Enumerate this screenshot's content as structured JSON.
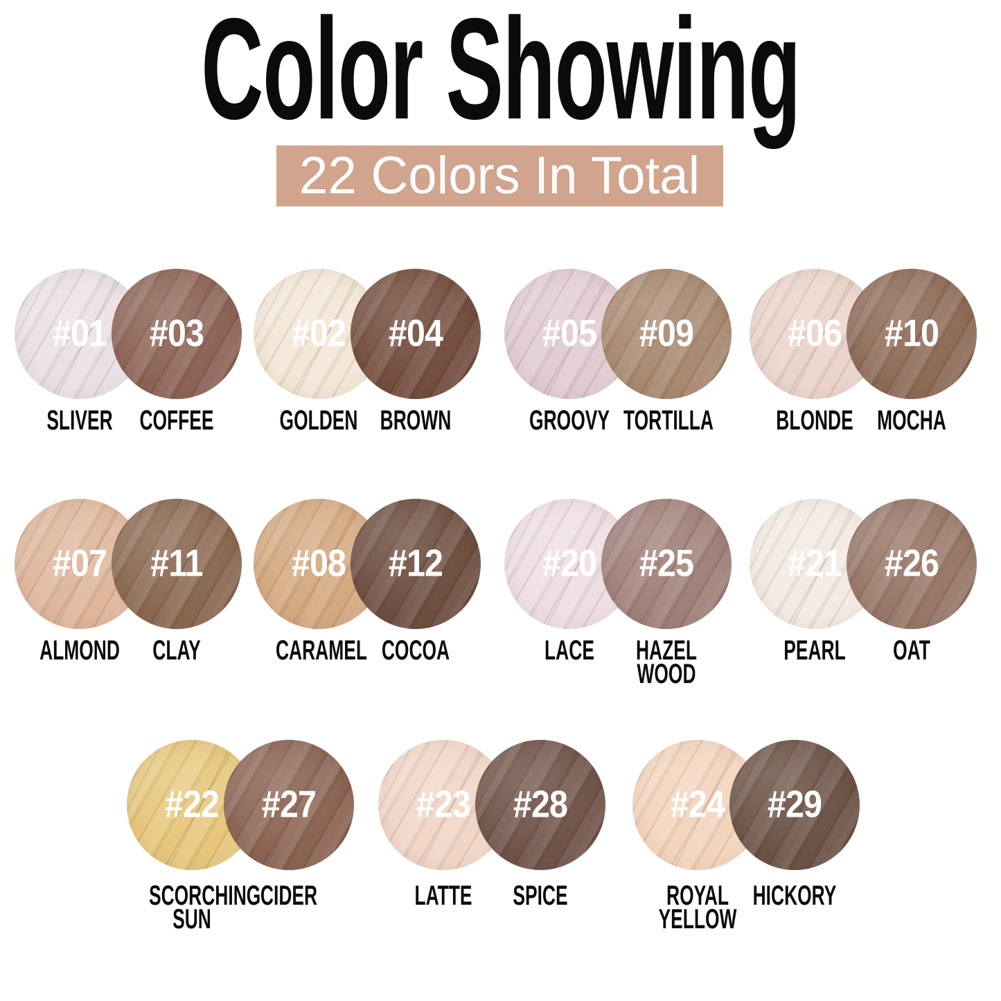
{
  "title": "Color Showing",
  "banner": {
    "text": "22 Colors In Total",
    "bg_color": "#d0a48d",
    "text_color": "#ffffff"
  },
  "rows": [
    {
      "pairs": [
        {
          "left": {
            "number": "#01",
            "name": "SLIVER",
            "color": "#ebe0e3"
          },
          "right": {
            "number": "#03",
            "name": "COFFEE",
            "color": "#8d6455"
          }
        },
        {
          "left": {
            "number": "#02",
            "name": "GOLDEN",
            "color": "#f3e6d6"
          },
          "right": {
            "number": "#04",
            "name": "BROWN",
            "color": "#744e3e"
          }
        },
        {
          "left": {
            "number": "#05",
            "name": "GROOVY",
            "color": "#e1cbd1"
          },
          "right": {
            "number": "#09",
            "name": "TORTILLA",
            "color": "#a98970"
          }
        },
        {
          "left": {
            "number": "#06",
            "name": "BLONDE",
            "color": "#ebd4c9"
          },
          "right": {
            "number": "#10",
            "name": "MOCHA",
            "color": "#8e6b57"
          }
        }
      ]
    },
    {
      "pairs": [
        {
          "left": {
            "number": "#07",
            "name": "ALMOND",
            "color": "#dfb69b"
          },
          "right": {
            "number": "#11",
            "name": "CLAY",
            "color": "#8b6951"
          }
        },
        {
          "left": {
            "number": "#08",
            "name": "CARAMEL",
            "color": "#d4a97f"
          },
          "right": {
            "number": "#12",
            "name": "COCOA",
            "color": "#6e4f40"
          }
        },
        {
          "left": {
            "number": "#20",
            "name": "LACE",
            "color": "#efdee1"
          },
          "right": {
            "number": "#25",
            "name": "HAZEL\nWOOD",
            "color": "#a18079"
          }
        },
        {
          "left": {
            "number": "#21",
            "name": "PEARL",
            "color": "#f3eae2"
          },
          "right": {
            "number": "#26",
            "name": "OAT",
            "color": "#987767"
          }
        }
      ]
    },
    {
      "pairs": [
        {
          "left": {
            "number": "#22",
            "name": "SCORCHING\nSUN",
            "color": "#e8c77c"
          },
          "right": {
            "number": "#27",
            "name": "CIDER",
            "color": "#8c6453"
          }
        },
        {
          "left": {
            "number": "#23",
            "name": "LATTE",
            "color": "#f1d6c6"
          },
          "right": {
            "number": "#28",
            "name": "SPICE",
            "color": "#715449"
          }
        },
        {
          "left": {
            "number": "#24",
            "name": "ROYAL\nYELLOW",
            "color": "#f4d4bc"
          },
          "right": {
            "number": "#29",
            "name": "HICKORY",
            "color": "#6d5346"
          }
        }
      ]
    }
  ]
}
